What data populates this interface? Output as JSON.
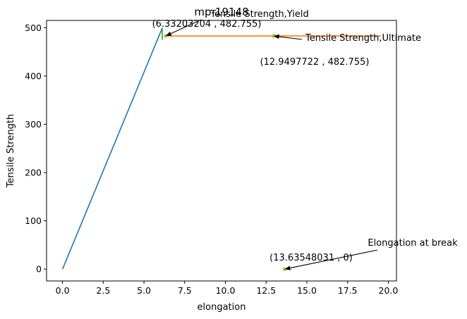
{
  "chart_data": {
    "type": "line",
    "title": "mp-19148",
    "xlabel": "elongation",
    "ylabel": "Tensile Strength",
    "xlim": [
      -0.98,
      20.5
    ],
    "ylim": [
      -24.5,
      515
    ],
    "grid": false,
    "x_ticks": [
      0.0,
      2.5,
      5.0,
      7.5,
      10.0,
      12.5,
      15.0,
      17.5,
      20.0
    ],
    "x_tick_labels": [
      "0.0",
      "2.5",
      "5.0",
      "7.5",
      "10.0",
      "12.5",
      "15.0",
      "17.5",
      "20.0"
    ],
    "y_ticks": [
      0,
      100,
      200,
      300,
      400,
      500
    ],
    "y_tick_labels": [
      "0",
      "100",
      "200",
      "300",
      "400",
      "500"
    ],
    "series": [
      {
        "color": "#1f77b4",
        "x": [
          0,
          6.12
        ],
        "y": [
          0,
          499
        ]
      },
      {
        "color": "#ff7f0e",
        "x": [
          6.33,
          19.55
        ],
        "y": [
          482.755,
          482.755
        ]
      },
      {
        "color": "#2ca02c",
        "x": [
          6.12,
          6.12
        ],
        "y": [
          475,
          500
        ]
      }
    ],
    "points": [
      {
        "x": 6.33203204,
        "y": 482.755,
        "color": "#bcbd22"
      },
      {
        "x": 12.9497722,
        "y": 482.755,
        "color": "#bcbd22"
      },
      {
        "x": 13.63548031,
        "y": 0,
        "color": "#bcbd22"
      }
    ],
    "annotations": [
      {
        "text": "Tensile Strength,Yield",
        "x": 6.33203204,
        "y": 482.755
      },
      {
        "text": "Tensile Strength,Ultimate",
        "x": 12.9497722,
        "y": 482.755
      },
      {
        "text": "Elongation at break",
        "x": 13.63548031,
        "y": 0
      }
    ],
    "value_labels": [
      "(6.33203204 , 482.755)",
      "(12.9497722 , 482.755)",
      "(13.63548031 , 0)"
    ]
  }
}
